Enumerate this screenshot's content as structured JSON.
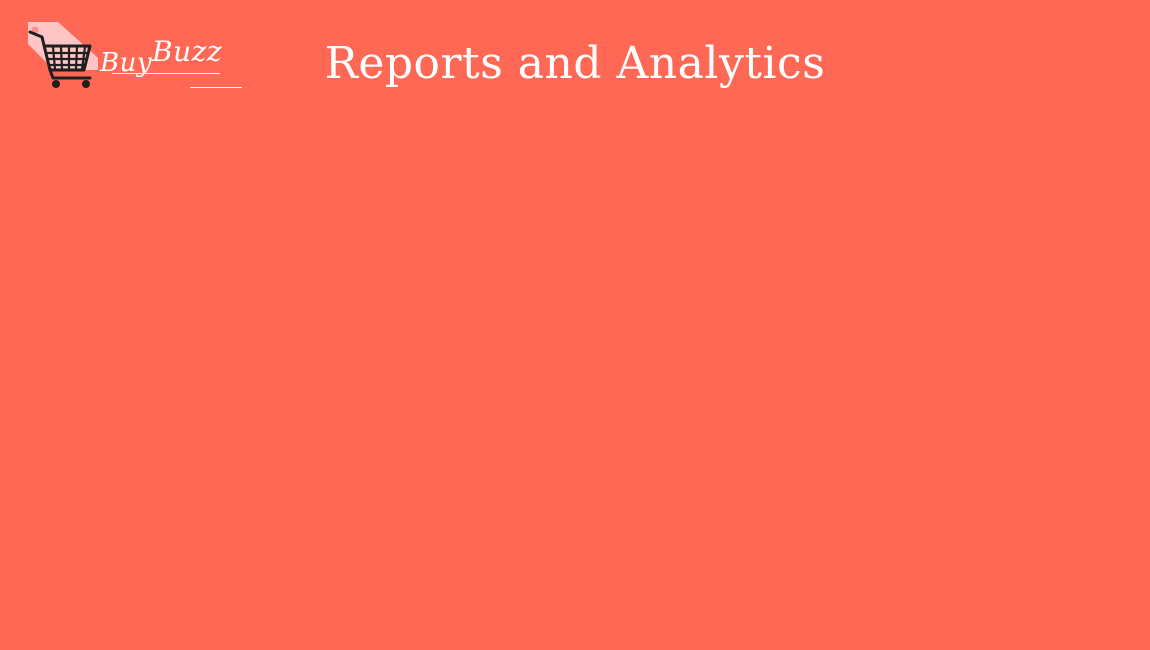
{
  "brand": {
    "name_part_1": "Buy",
    "name_part_2": "Buzz",
    "icon": "shopping-cart-tag-icon"
  },
  "header": {
    "title": "Reports and Analytics"
  },
  "colors": {
    "background": "#FF6854",
    "text": "#FFFFFF",
    "tag": "#FFC5C5",
    "cart": "#1F1F1F"
  }
}
